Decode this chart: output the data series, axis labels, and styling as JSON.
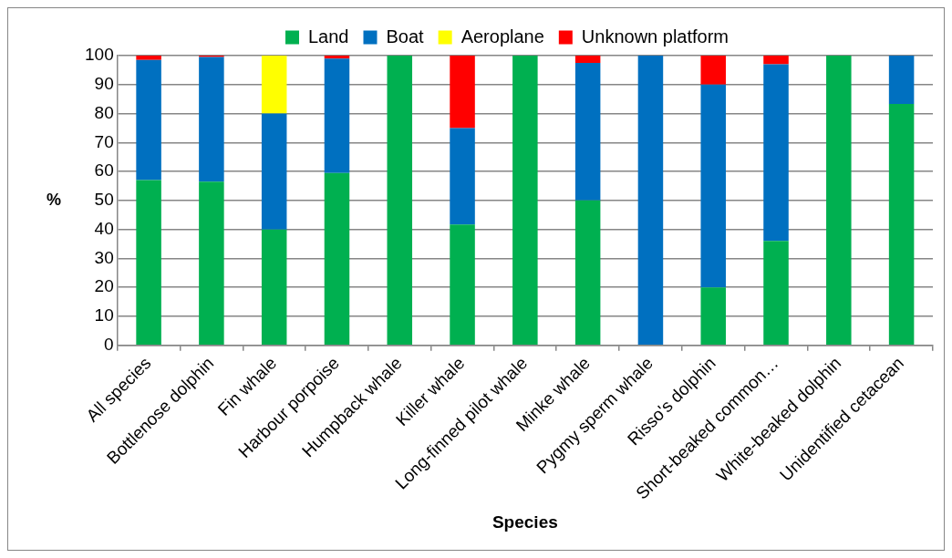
{
  "chart_data": {
    "type": "bar",
    "stacked": true,
    "xlabel": "Species",
    "ylabel": "%",
    "categories": [
      "All species",
      "Bottlenose dolphin",
      "Fin whale",
      "Harbour porpoise",
      "Humpback whale",
      "Killer whale",
      "Long-finned pilot whale",
      "Minke whale",
      "Pygmy sperm whale",
      "Risso's dolphin",
      "Short-beaked common…",
      "White-beaked dolphin",
      "Unidentified cetacean"
    ],
    "series": [
      {
        "name": "Land",
        "color": "#00b050",
        "values": [
          57,
          56.5,
          40,
          59.5,
          100,
          41.7,
          100,
          50,
          0,
          20,
          36,
          100,
          83.3
        ]
      },
      {
        "name": "Boat",
        "color": "#0070c0",
        "values": [
          41.5,
          43,
          40,
          39.5,
          0,
          33.3,
          0,
          47.5,
          100,
          70,
          61,
          0,
          16.7
        ]
      },
      {
        "name": "Aeroplane",
        "color": "#ffff00",
        "values": [
          0,
          0,
          20,
          0,
          0,
          0,
          0,
          0,
          0,
          0,
          0,
          0,
          0
        ]
      },
      {
        "name": "Unknown platform",
        "color": "#ff0000",
        "values": [
          1.5,
          0.5,
          0,
          1,
          0,
          25,
          0,
          2.5,
          0,
          10,
          3,
          0,
          0
        ]
      }
    ],
    "ylim": [
      0,
      100
    ],
    "yticks": [
      0,
      10,
      20,
      30,
      40,
      50,
      60,
      70,
      80,
      90,
      100
    ],
    "grid": "y",
    "legend": "top"
  }
}
